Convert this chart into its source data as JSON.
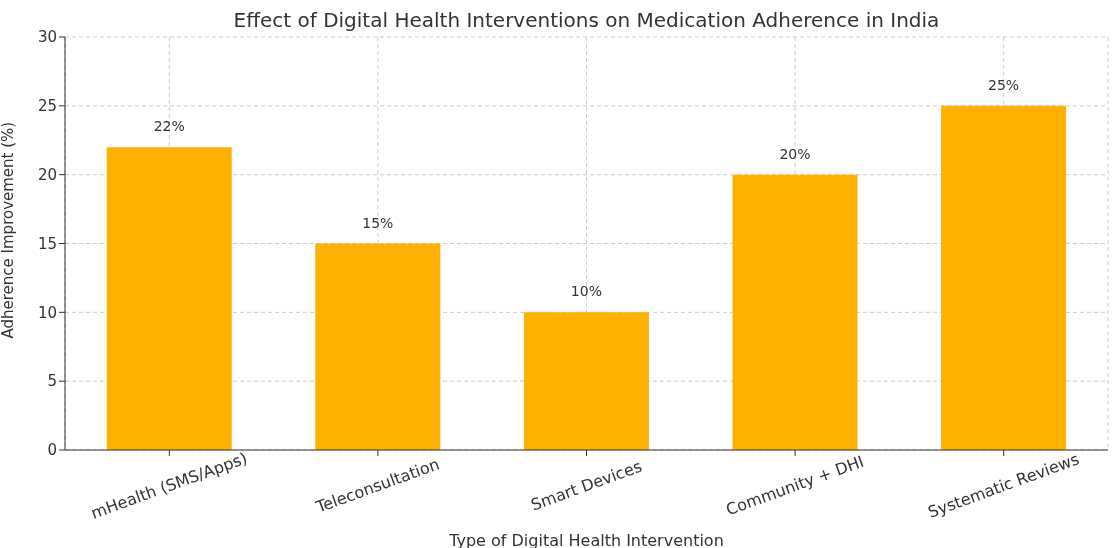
{
  "chart_data": {
    "type": "bar",
    "title": "Effect of Digital Health Interventions on Medication Adherence in India",
    "xlabel": "Type of Digital Health Intervention",
    "ylabel": "Adherence Improvement (%)",
    "categories": [
      "mHealth (SMS/Apps)",
      "Teleconsultation",
      "Smart Devices",
      "Community + DHI",
      "Systematic Reviews"
    ],
    "values": [
      22,
      15,
      10,
      20,
      25
    ],
    "value_labels": [
      "22%",
      "15%",
      "10%",
      "20%",
      "25%"
    ],
    "color": "#ffb000",
    "ylim": [
      0,
      30
    ],
    "yticks": [
      0,
      5,
      10,
      15,
      20,
      25,
      30
    ],
    "grid": true,
    "legend": false
  }
}
